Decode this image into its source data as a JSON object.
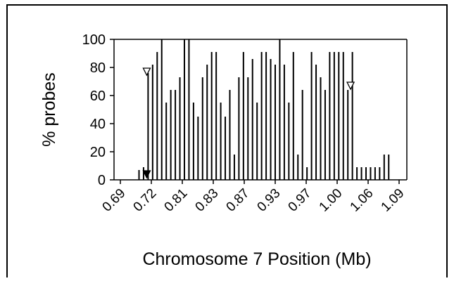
{
  "chart_data": {
    "type": "bar",
    "title": "",
    "xlabel": "Chromosome 7 Position (Mb)",
    "ylabel": "% probes",
    "ylim": [
      0,
      100
    ],
    "yticks": [
      0,
      20,
      40,
      60,
      80,
      100
    ],
    "xtick_labels": [
      "0.69",
      "0.72",
      "0.81",
      "0.83",
      "0.87",
      "0.93",
      "0.97",
      "1.00",
      "1.06",
      "1.09"
    ],
    "grid": false,
    "legend": "none",
    "bar_color": "#000000",
    "values": [
      7,
      9,
      76,
      82,
      91,
      100,
      55,
      64,
      64,
      73,
      100,
      100,
      55,
      45,
      73,
      82,
      91,
      91,
      55,
      45,
      64,
      18,
      73,
      91,
      73,
      86,
      55,
      91,
      91,
      86,
      82,
      100,
      82,
      55,
      91,
      18,
      64,
      9,
      91,
      82,
      73,
      64,
      91,
      91,
      91,
      91,
      64,
      91,
      9,
      9,
      9,
      9,
      9,
      9,
      18,
      18
    ],
    "markers": [
      {
        "type": "filled-triangle-down",
        "bar_index": 1.7,
        "value": 4
      },
      {
        "type": "open-triangle-down",
        "bar_index": 1.7,
        "value": 77
      },
      {
        "type": "open-triangle-down",
        "bar_index": 46.6,
        "value": 67
      }
    ]
  }
}
